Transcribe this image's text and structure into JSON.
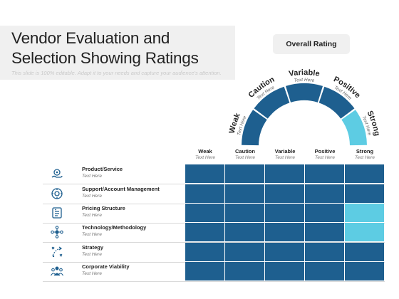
{
  "title": "Vendor Evaluation and Selection Showing Ratings",
  "subtitle": "This slide is 100% editable. Adapt it to your needs and capture your audience's attention.",
  "overall_rating_label": "Overall Rating",
  "colors": {
    "dark": "#1e5f8f",
    "light": "#5dcce3",
    "panel": "#f0f0f0"
  },
  "gauge": [
    {
      "label": "Weak",
      "sub": "Text Here",
      "color": "#1e5f8f"
    },
    {
      "label": "Caution",
      "sub": "Text Here",
      "color": "#1e5f8f"
    },
    {
      "label": "Variable",
      "sub": "Text Here",
      "color": "#1e5f8f"
    },
    {
      "label": "Positive",
      "sub": "Text Here",
      "color": "#1e5f8f"
    },
    {
      "label": "Strong",
      "sub": "Text Here",
      "color": "#5dcce3"
    }
  ],
  "columns": [
    {
      "label": "Weak",
      "sub": "Text Here"
    },
    {
      "label": "Caution",
      "sub": "Text Here"
    },
    {
      "label": "Variable",
      "sub": "Text Here"
    },
    {
      "label": "Positive",
      "sub": "Text Here"
    },
    {
      "label": "Strong",
      "sub": "Text Here"
    }
  ],
  "rows": [
    {
      "label": "Product/Service",
      "sub": "Text Here",
      "icon": "hand-gear-icon",
      "cells": [
        "dark",
        "dark",
        "dark",
        "dark",
        "dark"
      ]
    },
    {
      "label": "Support/Account Management",
      "sub": "Text Here",
      "icon": "support-icon",
      "cells": [
        "dark",
        "dark",
        "dark",
        "dark",
        "dark"
      ]
    },
    {
      "label": "Pricing Structure",
      "sub": "Text Here",
      "icon": "price-tag-icon",
      "cells": [
        "dark",
        "dark",
        "dark",
        "dark",
        "light"
      ]
    },
    {
      "label": "Technology/Methodology",
      "sub": "Text Here",
      "icon": "network-icon",
      "cells": [
        "dark",
        "dark",
        "dark",
        "dark",
        "light"
      ]
    },
    {
      "label": "Strategy",
      "sub": "Text Here",
      "icon": "strategy-icon",
      "cells": [
        "dark",
        "dark",
        "dark",
        "dark",
        "dark"
      ]
    },
    {
      "label": "Corporate Viability",
      "sub": "Text Here",
      "icon": "group-icon",
      "cells": [
        "dark",
        "dark",
        "dark",
        "dark",
        "dark"
      ]
    }
  ]
}
